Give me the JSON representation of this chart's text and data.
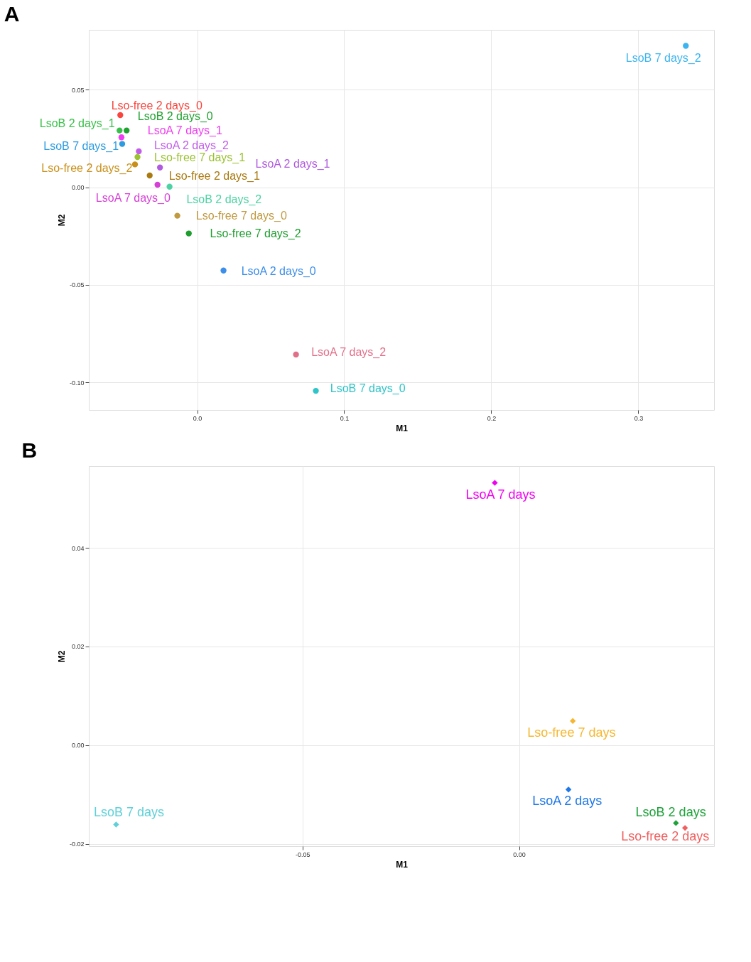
{
  "chart_data": [
    {
      "type": "scatter",
      "title": "A",
      "xlabel": "M1",
      "ylabel": "M2",
      "xlim": [
        -0.0737,
        0.3515
      ],
      "ylim": [
        -0.1142,
        0.0807
      ],
      "xticks": [
        {
          "value": 0,
          "label": "0.0"
        },
        {
          "value": 0.1,
          "label": "0.1"
        },
        {
          "value": 0.2,
          "label": "0.2"
        },
        {
          "value": 0.3,
          "label": "0.3"
        }
      ],
      "yticks": [
        {
          "value": -0.1,
          "label": "-0.10"
        },
        {
          "value": -0.05,
          "label": "-0.05"
        },
        {
          "value": 0,
          "label": "0.00"
        },
        {
          "value": 0.05,
          "label": "0.05"
        }
      ],
      "grid": true,
      "legend": false,
      "marker": "circle",
      "series": [
        {
          "name": "Lso-free 2 days_0",
          "color": "#f8453d",
          "x": [
            -0.0523
          ],
          "values": [
            0.037
          ]
        },
        {
          "name": "LsoB 2 days_0",
          "color": "#1fa12f",
          "x": [
            -0.048
          ],
          "values": [
            0.0291
          ]
        },
        {
          "name": "LsoB 2 days_1",
          "color": "#39c04a",
          "x": [
            -0.0528
          ],
          "values": [
            0.0291
          ]
        },
        {
          "name": "LsoA 7 days_1",
          "color": "#f03cf0",
          "x": [
            -0.0515
          ],
          "values": [
            0.0256
          ]
        },
        {
          "name": "LsoB 7 days_1",
          "color": "#2c9be0",
          "x": [
            -0.051
          ],
          "values": [
            0.0222
          ]
        },
        {
          "name": "LsoA 2 days_2",
          "color": "#c15ee8",
          "x": [
            -0.0397
          ],
          "values": [
            0.0184
          ]
        },
        {
          "name": "Lso-free 7 days_1",
          "color": "#9cc232",
          "x": [
            -0.0406
          ],
          "values": [
            0.0155
          ]
        },
        {
          "name": "Lso-free 2 days_2",
          "color": "#c8901a",
          "x": [
            -0.0423
          ],
          "values": [
            0.0117
          ]
        },
        {
          "name": "LsoA 2 days_1",
          "color": "#b05ae0",
          "x": [
            -0.0253
          ],
          "values": [
            0.0101
          ]
        },
        {
          "name": "Lso-free 2 days_1",
          "color": "#a87a10",
          "x": [
            -0.0323
          ],
          "values": [
            0.006
          ]
        },
        {
          "name": "LsoA 7 days_0",
          "color": "#d63fd6",
          "x": [
            -0.027
          ],
          "values": [
            0.0013
          ]
        },
        {
          "name": "LsoB 2 days_2",
          "color": "#4dd3a3",
          "x": [
            -0.0188
          ],
          "values": [
            0.0003
          ]
        },
        {
          "name": "Lso-free 7 days_0",
          "color": "#c09a40",
          "x": [
            -0.0135
          ],
          "values": [
            -0.0146
          ]
        },
        {
          "name": "Lso-free 7 days_2",
          "color": "#1e9e2e",
          "x": [
            -0.0057
          ],
          "values": [
            -0.0237
          ]
        },
        {
          "name": "LsoA 2 days_0",
          "color": "#3c8ee8",
          "x": [
            0.0179
          ],
          "values": [
            -0.0427
          ]
        },
        {
          "name": "LsoA 7 days_2",
          "color": "#e0708a",
          "x": [
            0.0672
          ],
          "values": [
            -0.0858
          ]
        },
        {
          "name": "LsoB 7 days_0",
          "color": "#2ec4c8",
          "x": [
            0.0807
          ],
          "values": [
            -0.1044
          ]
        },
        {
          "name": "LsoB 7 days_2",
          "color": "#3cb4f0",
          "x": [
            0.3323
          ],
          "values": [
            0.0725
          ]
        }
      ]
    },
    {
      "type": "scatter",
      "title": "B",
      "xlabel": "M1",
      "ylabel": "M2",
      "xlim": [
        -0.0993,
        0.045
      ],
      "ylim": [
        -0.0205,
        0.0566
      ],
      "xticks": [
        {
          "value": -0.05,
          "label": "-0.05"
        },
        {
          "value": 0,
          "label": "0.00"
        }
      ],
      "yticks": [
        {
          "value": -0.02,
          "label": "-0.02"
        },
        {
          "value": 0,
          "label": "0.00"
        },
        {
          "value": 0.02,
          "label": "0.02"
        },
        {
          "value": 0.04,
          "label": "0.04"
        }
      ],
      "grid": true,
      "legend": false,
      "marker": "diamond",
      "series": [
        {
          "name": "LsoA 7 days",
          "color": "#f000f0",
          "x": [
            -0.0056
          ],
          "values": [
            0.0532
          ]
        },
        {
          "name": "Lso-free 7 days",
          "color": "#f5b731",
          "x": [
            0.0124
          ],
          "values": [
            0.0049
          ]
        },
        {
          "name": "LsoA 2 days",
          "color": "#1f78e8",
          "x": [
            0.0114
          ],
          "values": [
            -0.009
          ]
        },
        {
          "name": "LsoB 2 days",
          "color": "#1ea23a",
          "x": [
            0.0362
          ],
          "values": [
            -0.0158
          ]
        },
        {
          "name": "Lso-free 2 days",
          "color": "#f06060",
          "x": [
            0.0383
          ],
          "values": [
            -0.0168
          ]
        },
        {
          "name": "LsoB 7 days",
          "color": "#60d0d8",
          "x": [
            -0.093
          ],
          "values": [
            -0.0161
          ]
        }
      ]
    }
  ]
}
